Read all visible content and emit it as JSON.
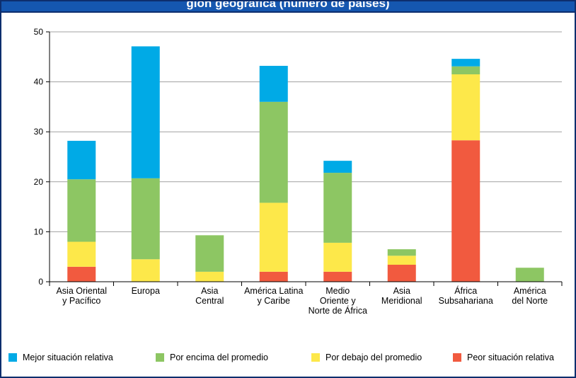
{
  "title": "gión geográfica (número de países)",
  "chart_data": {
    "type": "bar",
    "stacked": true,
    "ylim": [
      0,
      50
    ],
    "yticks": [
      0,
      10,
      20,
      30,
      40,
      50
    ],
    "grid": true,
    "legend_position": "bottom",
    "categories": [
      [
        "Asia Oriental",
        "y Pacífico"
      ],
      [
        "Europa"
      ],
      [
        "Asia",
        "Central"
      ],
      [
        "América Latina",
        "y Caribe"
      ],
      [
        "Medio",
        "Oriente y",
        "Norte de África"
      ],
      [
        "Asia",
        "Meridional"
      ],
      [
        "África",
        "Subsahariana"
      ],
      [
        "América",
        "del Norte"
      ]
    ],
    "series": [
      {
        "name": "Peor situación relativa",
        "color": "#f15a3f",
        "values": [
          3,
          0,
          0,
          2,
          2,
          3.4,
          28.3,
          0
        ]
      },
      {
        "name": "Por debajo del promedio",
        "color": "#fde84a",
        "values": [
          5,
          4.5,
          2,
          13.8,
          5.8,
          1.8,
          13.2,
          0
        ]
      },
      {
        "name": "Por encima del promedio",
        "color": "#8dc663",
        "values": [
          12.5,
          16.2,
          7.3,
          20.2,
          14,
          1.3,
          1.6,
          2.8
        ]
      },
      {
        "name": "Mejor situación relativa",
        "color": "#00aae6",
        "values": [
          7.7,
          26.4,
          0,
          7.2,
          2.4,
          0,
          1.5,
          0
        ]
      }
    ],
    "legend_order": [
      3,
      2,
      1,
      0
    ]
  }
}
